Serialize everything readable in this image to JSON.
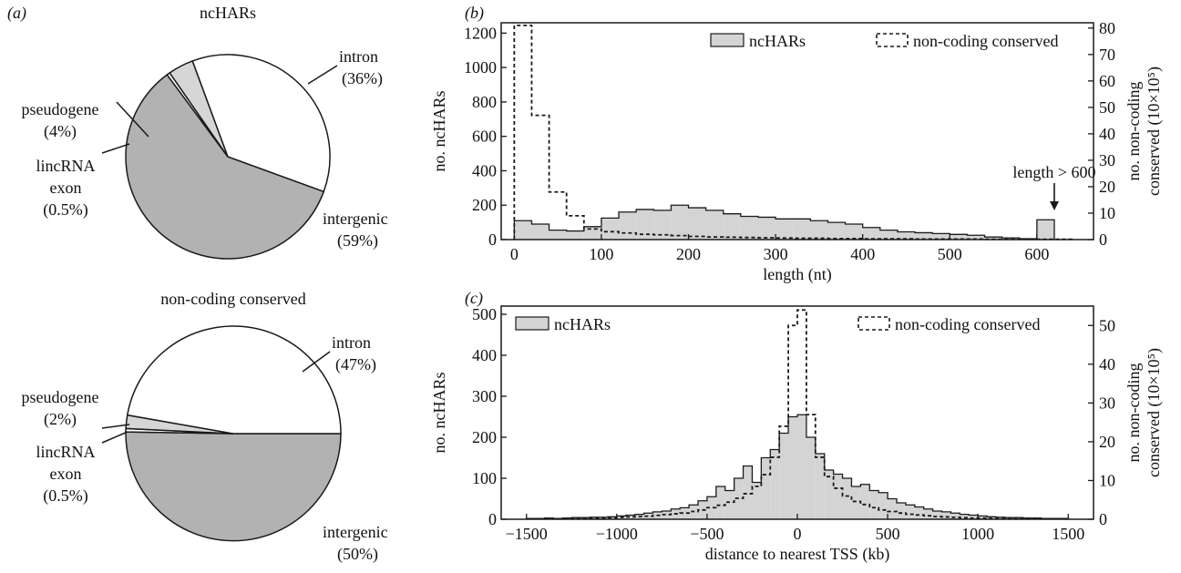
{
  "colors": {
    "pie_dark": "#b2b2b2",
    "pie_light": "#d6d6d6",
    "bar_fill": "#d4d4d4",
    "stroke": "#1a1a1a",
    "text": "#111111"
  },
  "chart_data": [
    {
      "panel": "(a)",
      "type": "pie",
      "title": "ncHARs",
      "slices": [
        {
          "label": "intergenic",
          "pct_label": "(59%)",
          "value": 59
        },
        {
          "label": "lincRNA\nexon",
          "pct_label": "(0.5%)",
          "value": 0.5
        },
        {
          "label": "pseudogene",
          "pct_label": "(4%)",
          "value": 4
        },
        {
          "label": "intron",
          "pct_label": "(36%)",
          "value": 36
        }
      ]
    },
    {
      "panel": "",
      "type": "pie",
      "title": "non-coding conserved",
      "slices": [
        {
          "label": "intergenic",
          "pct_label": "(50%)",
          "value": 50
        },
        {
          "label": "lincRNA\nexon",
          "pct_label": "(0.5%)",
          "value": 0.5
        },
        {
          "label": "pseudogene",
          "pct_label": "(2%)",
          "value": 2
        },
        {
          "label": "intron",
          "pct_label": "(47%)",
          "value": 47
        }
      ]
    },
    {
      "panel": "(b)",
      "type": "histogram",
      "xlabel": "length (nt)",
      "ylabel": "no. ncHARs",
      "y2label": "no. non-coding conserved (10×10⁵)",
      "xlim": [
        -15,
        665
      ],
      "ylim": [
        0,
        1260
      ],
      "y2lim": [
        0,
        82
      ],
      "xticks": [
        0,
        100,
        200,
        300,
        400,
        500,
        600
      ],
      "yticks": [
        0,
        200,
        400,
        600,
        800,
        1000,
        1200
      ],
      "y2ticks": [
        0,
        10,
        20,
        30,
        40,
        50,
        60,
        70,
        80
      ],
      "legend": [
        {
          "name": "ncHARs",
          "style": "filled"
        },
        {
          "name": "non-coding conserved",
          "style": "dashed"
        }
      ],
      "annotation": "length > 600",
      "annotation_x": 610,
      "bin_width": 20,
      "series": [
        {
          "name": "ncHARs",
          "bin_starts": [
            0,
            20,
            40,
            60,
            80,
            100,
            120,
            140,
            160,
            180,
            200,
            220,
            240,
            260,
            280,
            300,
            320,
            340,
            360,
            380,
            400,
            420,
            440,
            460,
            480,
            500,
            520,
            540,
            560,
            580,
            600
          ],
          "values": [
            110,
            90,
            55,
            50,
            75,
            125,
            160,
            175,
            170,
            200,
            185,
            170,
            150,
            135,
            130,
            120,
            120,
            110,
            100,
            90,
            70,
            55,
            45,
            40,
            35,
            30,
            25,
            15,
            10,
            5,
            115
          ]
        },
        {
          "name": "non-coding conserved",
          "bin_starts": [
            0,
            20,
            40,
            60,
            80,
            100,
            120,
            140,
            160,
            180,
            200,
            220,
            240,
            260,
            280,
            300,
            320,
            340,
            360,
            380,
            400,
            420,
            440,
            460,
            480,
            500,
            520,
            540,
            560,
            580,
            600,
            620
          ],
          "values": [
            81,
            47,
            18,
            9,
            4,
            3,
            2.5,
            2,
            1.8,
            1.5,
            1.2,
            1,
            0.9,
            0.8,
            0.7,
            0.6,
            0.5,
            0.5,
            0.4,
            0.4,
            0.3,
            0.3,
            0.3,
            0.2,
            0.2,
            0.2,
            0.2,
            0.1,
            0.1,
            0.1,
            0.1,
            0.1
          ]
        }
      ]
    },
    {
      "panel": "(c)",
      "type": "histogram",
      "xlabel": "distance to nearest TSS (kb)",
      "ylabel": "no. ncHARs",
      "y2label": "no. non-coding conserved (10×10⁵)",
      "xlim": [
        -1640,
        1640
      ],
      "ylim": [
        0,
        520
      ],
      "y2lim": [
        0,
        55
      ],
      "xticks": [
        -1500,
        -1000,
        -500,
        0,
        500,
        1000,
        1500
      ],
      "yticks": [
        0,
        100,
        200,
        300,
        400,
        500
      ],
      "y2ticks": [
        0,
        10,
        20,
        30,
        40,
        50
      ],
      "legend": [
        {
          "name": "ncHARs",
          "style": "filled"
        },
        {
          "name": "non-coding conserved",
          "style": "dashed"
        }
      ],
      "bin_width": 50,
      "series": [
        {
          "name": "ncHARs",
          "bin_starts": [
            -1500,
            -1450,
            -1400,
            -1350,
            -1300,
            -1250,
            -1200,
            -1150,
            -1100,
            -1050,
            -1000,
            -950,
            -900,
            -850,
            -800,
            -750,
            -700,
            -650,
            -600,
            -550,
            -500,
            -450,
            -400,
            -350,
            -300,
            -250,
            -200,
            -150,
            -100,
            -50,
            0,
            50,
            100,
            150,
            200,
            250,
            300,
            350,
            400,
            450,
            500,
            550,
            600,
            650,
            700,
            750,
            800,
            850,
            900,
            950,
            1000,
            1050,
            1100,
            1150,
            1200,
            1250,
            1300,
            1350,
            1400,
            1450
          ],
          "values": [
            2,
            2,
            3,
            2,
            3,
            4,
            4,
            5,
            5,
            6,
            8,
            10,
            12,
            15,
            18,
            20,
            25,
            28,
            35,
            45,
            55,
            80,
            70,
            100,
            130,
            90,
            150,
            170,
            210,
            250,
            255,
            200,
            160,
            120,
            110,
            100,
            80,
            85,
            70,
            65,
            50,
            40,
            35,
            30,
            25,
            20,
            18,
            15,
            12,
            10,
            8,
            6,
            5,
            4,
            4,
            3,
            3,
            2,
            2,
            2
          ]
        },
        {
          "name": "non-coding conserved",
          "bin_starts": [
            -1500,
            -1450,
            -1400,
            -1350,
            -1300,
            -1250,
            -1200,
            -1150,
            -1100,
            -1050,
            -1000,
            -950,
            -900,
            -850,
            -800,
            -750,
            -700,
            -650,
            -600,
            -550,
            -500,
            -450,
            -400,
            -350,
            -300,
            -250,
            -200,
            -150,
            -100,
            -50,
            0,
            50,
            100,
            150,
            200,
            250,
            300,
            350,
            400,
            450,
            500,
            550,
            600,
            650,
            700,
            750,
            800,
            850,
            900,
            950,
            1000,
            1050,
            1100,
            1150,
            1200,
            1250,
            1300,
            1350,
            1400,
            1450
          ],
          "values": [
            0.1,
            0.1,
            0.1,
            0.1,
            0.2,
            0.2,
            0.2,
            0.3,
            0.3,
            0.4,
            0.5,
            0.6,
            0.7,
            0.8,
            1,
            1.2,
            1.4,
            1.6,
            2,
            2.4,
            3,
            3.6,
            4.4,
            5.4,
            6.6,
            8.5,
            11.5,
            16,
            24,
            50,
            54,
            27,
            16,
            11,
            8,
            6,
            4.6,
            3.8,
            3,
            2.4,
            2,
            1.6,
            1.3,
            1.1,
            0.9,
            0.7,
            0.6,
            0.5,
            0.4,
            0.3,
            0.3,
            0.2,
            0.2,
            0.2,
            0.1,
            0.1,
            0.1,
            0.1,
            0.1,
            0.1
          ]
        }
      ]
    }
  ]
}
